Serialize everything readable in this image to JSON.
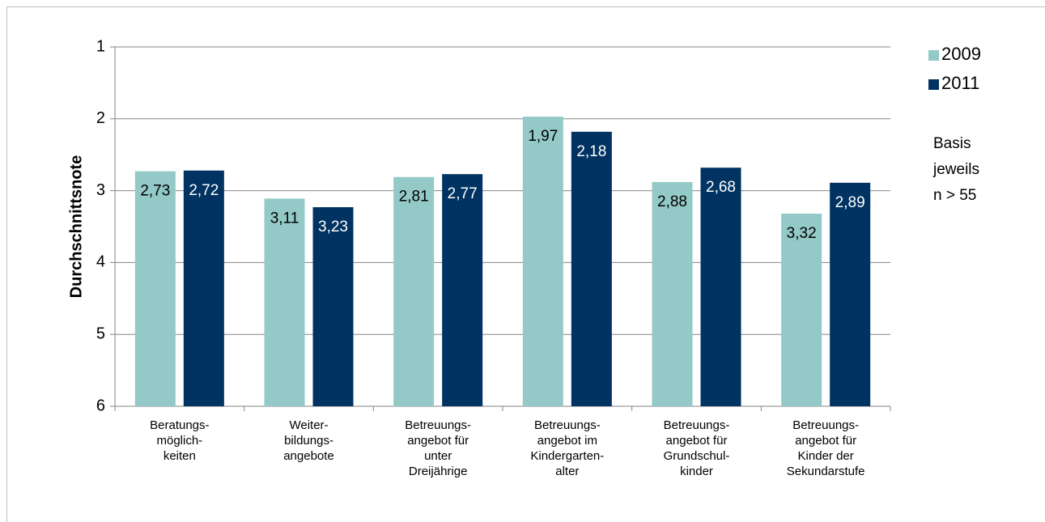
{
  "chart_data": {
    "type": "bar",
    "y_label": "Durchschnittsnote",
    "categories": [
      "Beratungs-\nmöglich-\nkeiten",
      "Weiter-\nbildungs-\nangebote",
      "Betreuungs-\nangebot für\nunter\nDreijährige",
      "Betreuungs-\nangebot im\nKindergarten-\nalter",
      "Betreuungs-\nangebot für\nGrundschul-\nkinder",
      "Betreuungs-\nangebot für\nKinder der\nSekundarstufe"
    ],
    "series": [
      {
        "name": "2009",
        "color": "#93c9c6",
        "label_color": "#000000",
        "values": [
          2.73,
          3.11,
          2.81,
          1.97,
          2.88,
          3.32
        ],
        "value_labels": [
          "2,73",
          "3,11",
          "2,81",
          "1,97",
          "2,88",
          "3,32"
        ]
      },
      {
        "name": "2011",
        "color": "#003361",
        "label_color": "#ffffff",
        "values": [
          2.72,
          3.23,
          2.77,
          2.18,
          2.68,
          2.89
        ],
        "value_labels": [
          "2,72",
          "3,23",
          "2,77",
          "2,18",
          "2,68",
          "2,89"
        ]
      }
    ],
    "ylim": [
      1,
      6
    ],
    "y_inverted": true,
    "yticks": [
      1,
      2,
      3,
      4,
      5,
      6
    ],
    "grid": true,
    "legend": "right",
    "annotation": "Basis\njeweils\nn > 55"
  }
}
